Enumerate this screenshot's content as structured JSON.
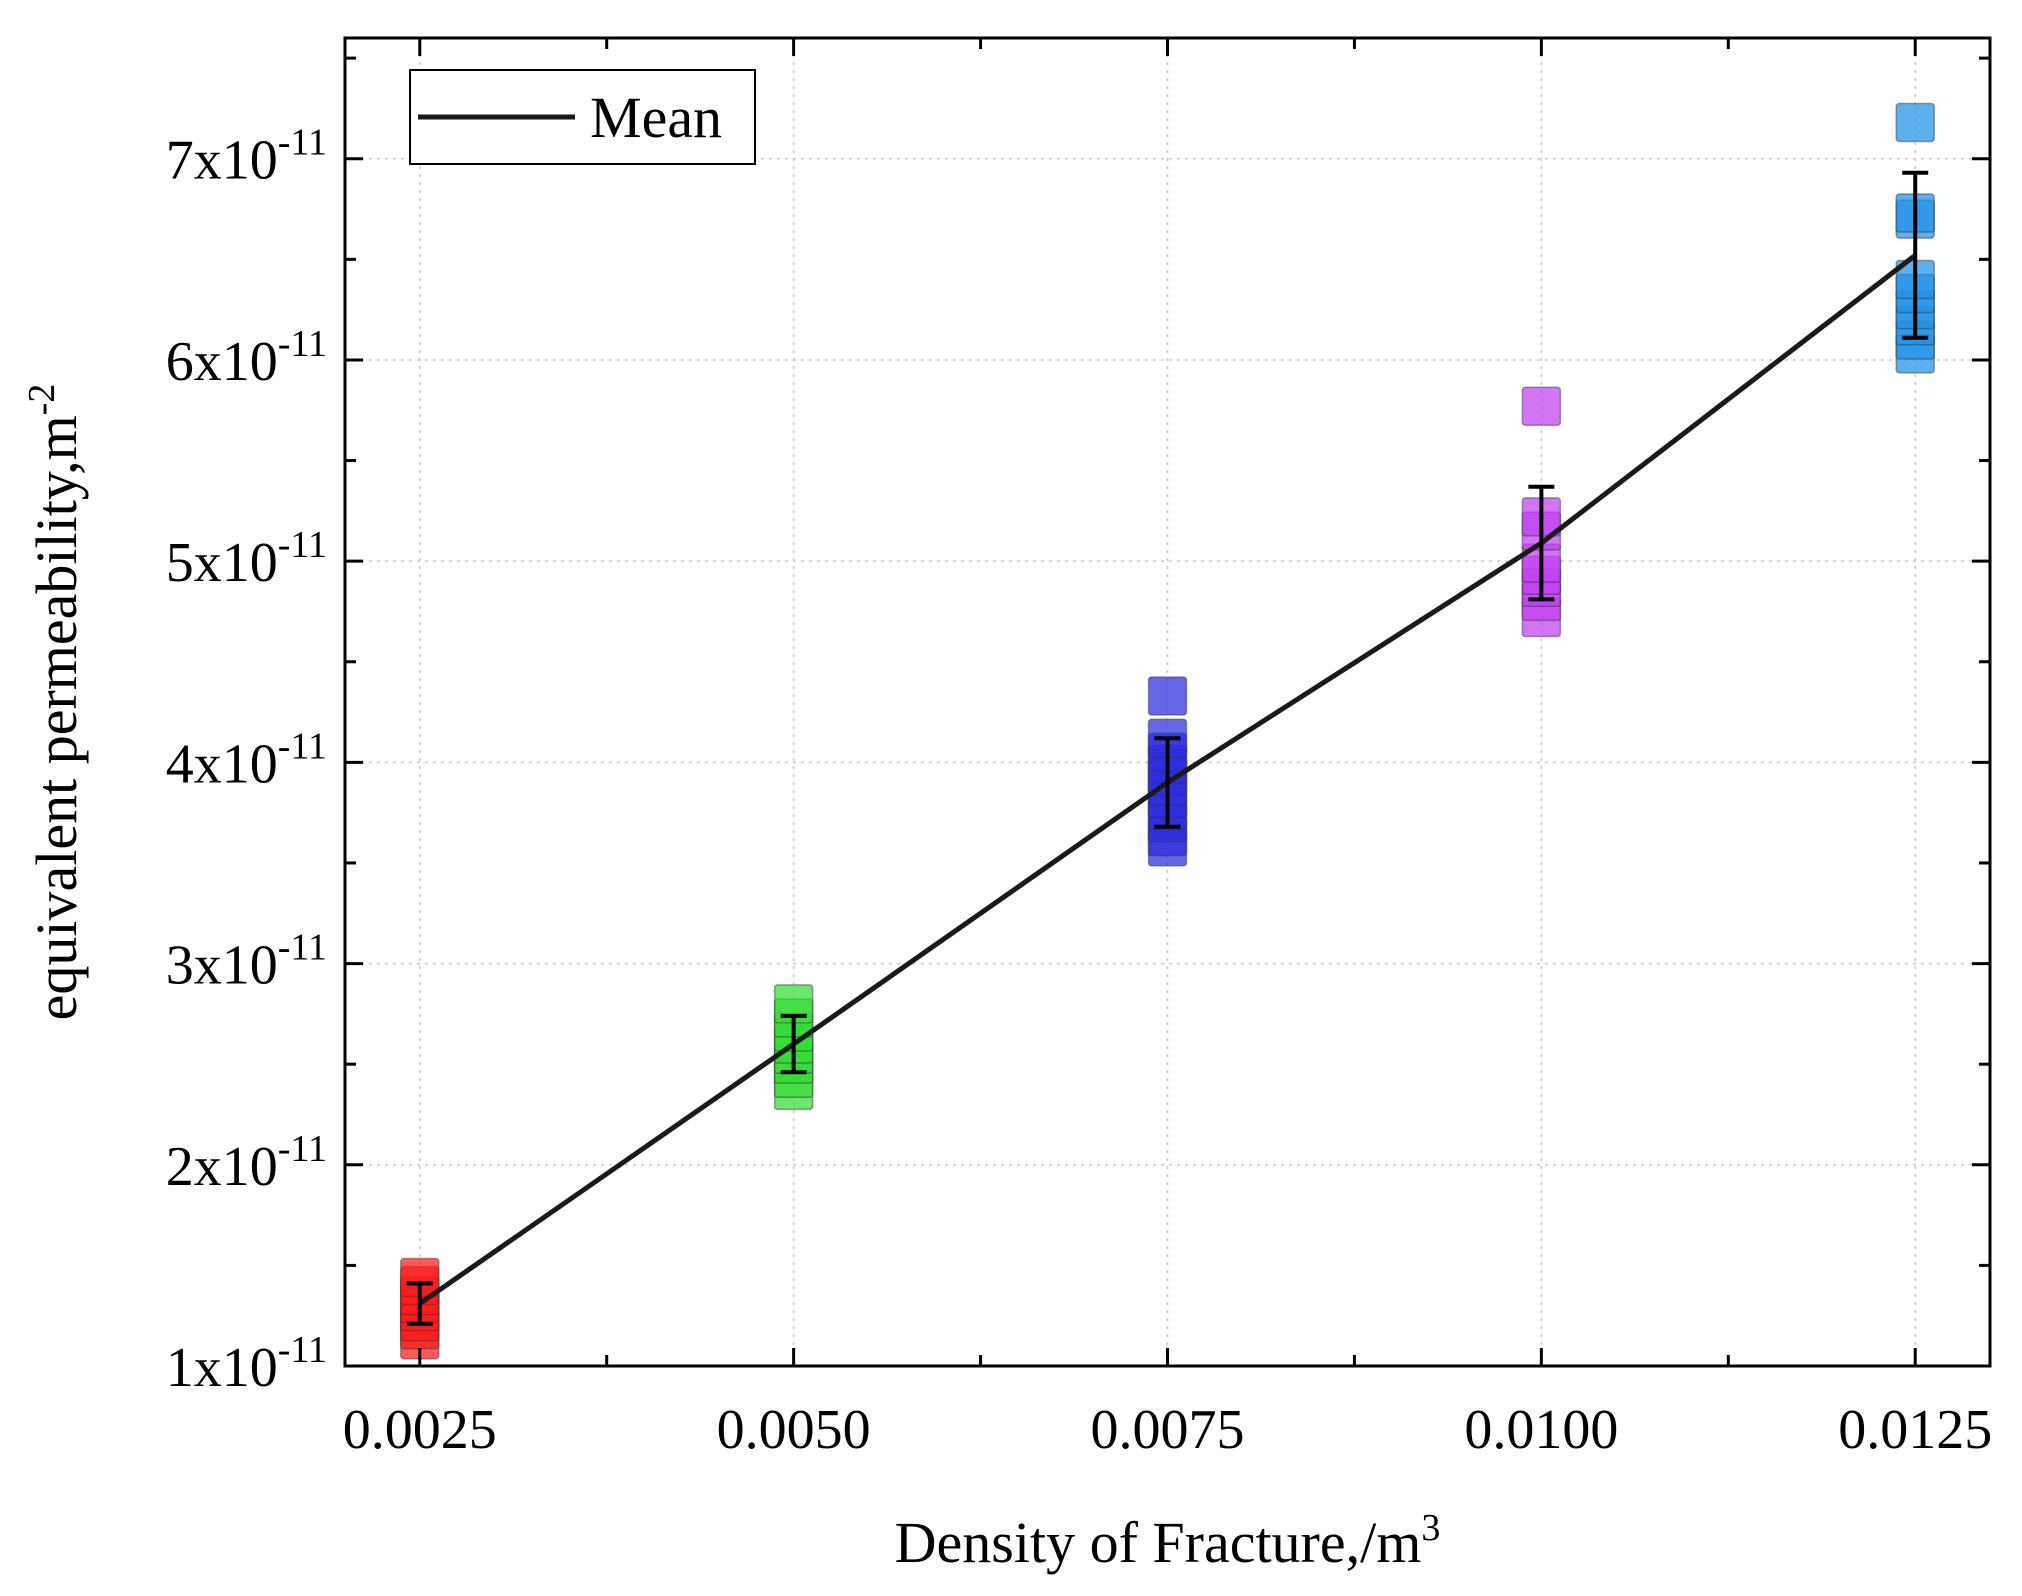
{
  "chart_data": {
    "type": "scatter",
    "title": "",
    "xlabel": "Density of Fracture,/m",
    "xlabel_sup": "3",
    "ylabel": "equivalent permeability,m",
    "ylabel_sup": "-2",
    "xlim": [
      0.002,
      0.013
    ],
    "ylim": [
      1e-11,
      7.6e-11
    ],
    "x_ticks": [
      0.0025,
      0.005,
      0.0075,
      0.01,
      0.0125
    ],
    "x_tick_labels": [
      "0.0025",
      "0.0050",
      "0.0075",
      "0.0100",
      "0.0125"
    ],
    "x_minor_ticks": [
      0.0025,
      0.00375,
      0.005,
      0.00625,
      0.0075,
      0.00875,
      0.01,
      0.01125,
      0.0125
    ],
    "y_ticks": [
      1e-11,
      2e-11,
      3e-11,
      4e-11,
      5e-11,
      6e-11,
      7e-11
    ],
    "y_tick_labels": [
      {
        "base": "1x10",
        "exp": "-11"
      },
      {
        "base": "2x10",
        "exp": "-11"
      },
      {
        "base": "3x10",
        "exp": "-11"
      },
      {
        "base": "4x10",
        "exp": "-11"
      },
      {
        "base": "5x10",
        "exp": "-11"
      },
      {
        "base": "6x10",
        "exp": "-11"
      },
      {
        "base": "7x10",
        "exp": "-11"
      }
    ],
    "grid": true,
    "legend": {
      "placement": "top-left",
      "entries": [
        "Mean"
      ]
    },
    "series": [
      {
        "name": "0.0025",
        "color": "#ff1a1a",
        "x": 0.0025,
        "values": [
          1.13e-11,
          1.18e-11,
          1.22e-11,
          1.27e-11,
          1.31e-11,
          1.35e-11,
          1.4e-11,
          1.44e-11
        ]
      },
      {
        "name": "0.0050",
        "color": "#33dd33",
        "x": 0.005,
        "values": [
          2.37e-11,
          2.43e-11,
          2.5e-11,
          2.55e-11,
          2.6e-11,
          2.66e-11,
          2.73e-11,
          2.8e-11
        ]
      },
      {
        "name": "0.0075",
        "color": "#2b2be0",
        "x": 0.0075,
        "values": [
          3.58e-11,
          3.63e-11,
          3.7e-11,
          3.76e-11,
          3.82e-11,
          3.88e-11,
          3.93e-11,
          3.99e-11,
          4.05e-11,
          4.12e-11,
          4.33e-11
        ]
      },
      {
        "name": "0.0100",
        "color": "#c040f0",
        "x": 0.01,
        "values": [
          4.72e-11,
          4.8e-11,
          4.87e-11,
          4.93e-11,
          4.99e-11,
          5.15e-11,
          5.22e-11,
          5.77e-11
        ]
      },
      {
        "name": "0.0125",
        "color": "#1e90e8",
        "x": 0.0125,
        "values": [
          6.03e-11,
          6.1e-11,
          6.17e-11,
          6.25e-11,
          6.33e-11,
          6.4e-11,
          6.7e-11,
          6.73e-11,
          7.18e-11
        ]
      }
    ],
    "mean": {
      "name": "Mean",
      "x": [
        0.0025,
        0.005,
        0.0075,
        0.01,
        0.0125
      ],
      "y": [
        1.31e-11,
        2.6e-11,
        3.9e-11,
        5.09e-11,
        6.52e-11
      ],
      "err": [
        1e-12,
        1.4e-12,
        2.2e-12,
        2.8e-12,
        4.1e-12
      ]
    }
  }
}
